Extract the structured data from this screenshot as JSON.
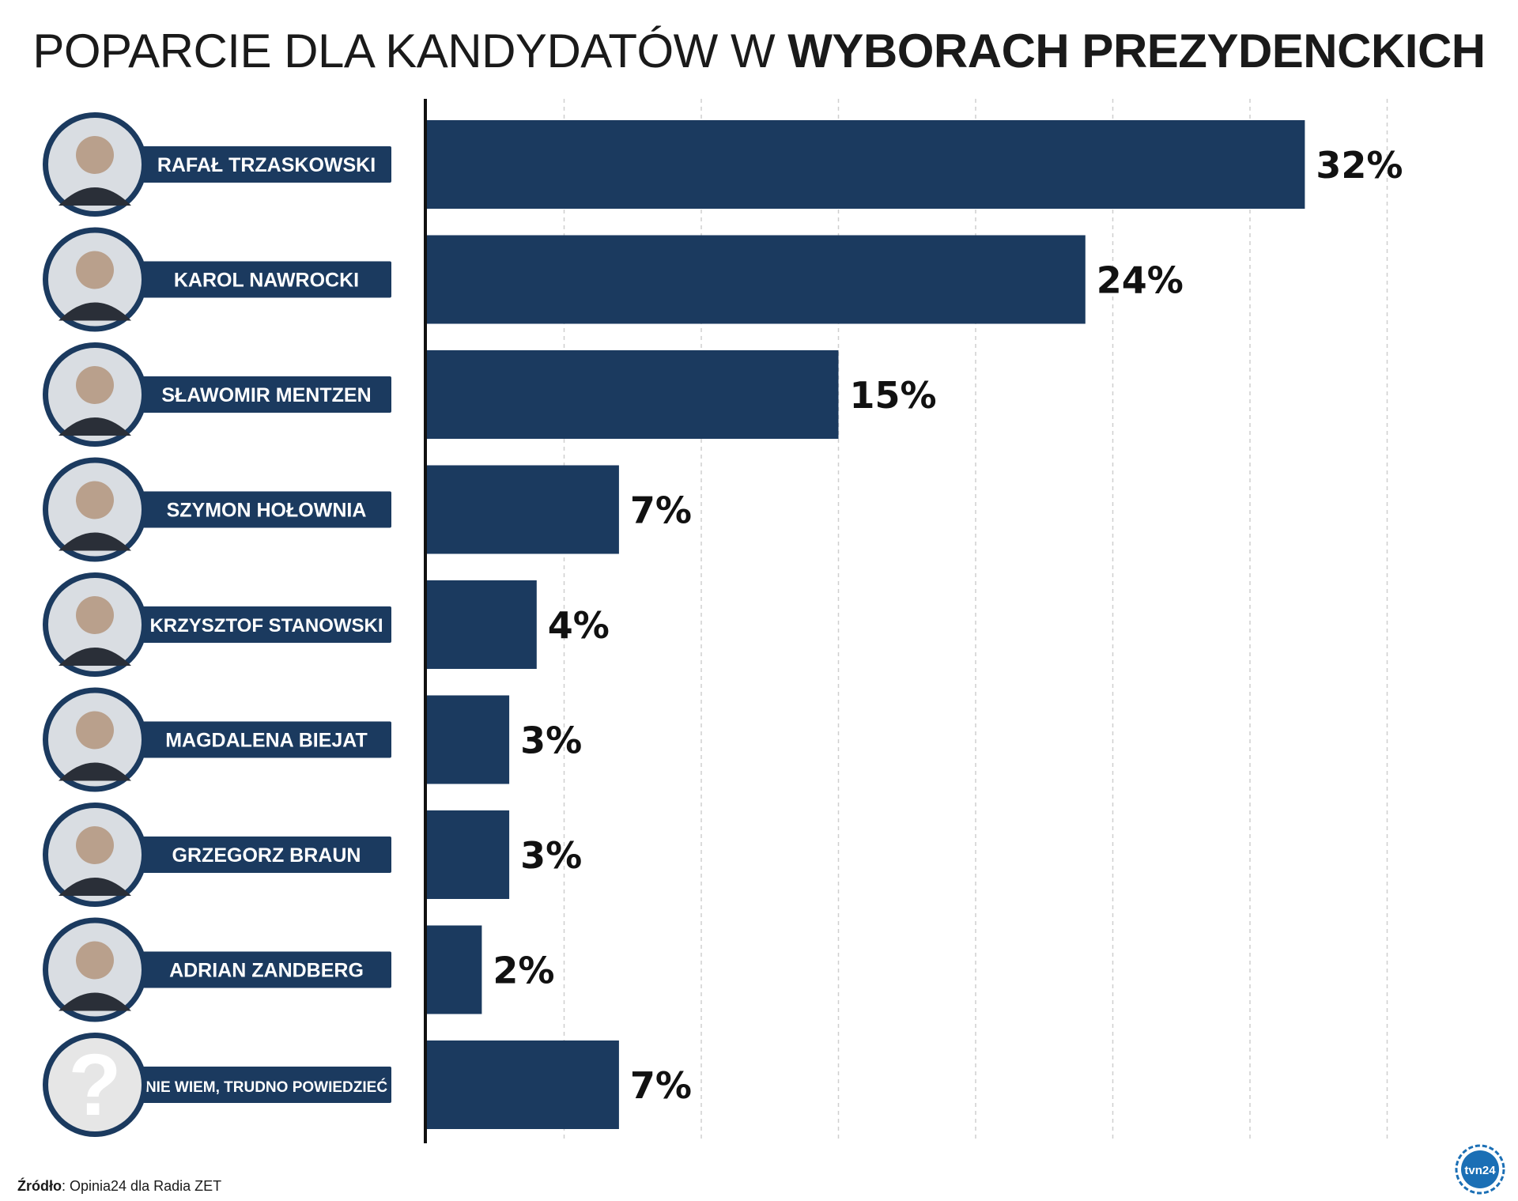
{
  "title": {
    "part1": "POPARCIE DLA KANDYDATÓW W ",
    "part2": "WYBORACH PREZYDENCKICH"
  },
  "source": {
    "label": "Źródło",
    "text": ": Opinia24 dla Radia ZET"
  },
  "logo": {
    "text": "tvn24"
  },
  "colors": {
    "bar": "#1b3a5f",
    "accent": "#1b3a5f",
    "grid": "#cfcfcf",
    "axis": "#111111"
  },
  "chart_data": {
    "type": "bar",
    "orientation": "horizontal",
    "title": "POPARCIE DLA KANDYDATÓW W WYBORACH PREZYDENCKICH",
    "unit": "%",
    "xlim": [
      0,
      35
    ],
    "grid": true,
    "categories": [
      "RAFAŁ TRZASKOWSKI",
      "KAROL NAWROCKI",
      "SŁAWOMIR MENTZEN",
      "SZYMON HOŁOWNIA",
      "KRZYSZTOF STANOWSKI",
      "MAGDALENA BIEJAT",
      "GRZEGORZ BRAUN",
      "ADRIAN ZANDBERG",
      "NIE WIEM, TRUDNO POWIEDZIEĆ"
    ],
    "values": [
      32,
      24,
      15,
      7,
      4,
      3,
      3,
      2,
      7
    ],
    "labels": [
      "32%",
      "24%",
      "15%",
      "7%",
      "4%",
      "3%",
      "3%",
      "2%",
      "7%"
    ]
  }
}
